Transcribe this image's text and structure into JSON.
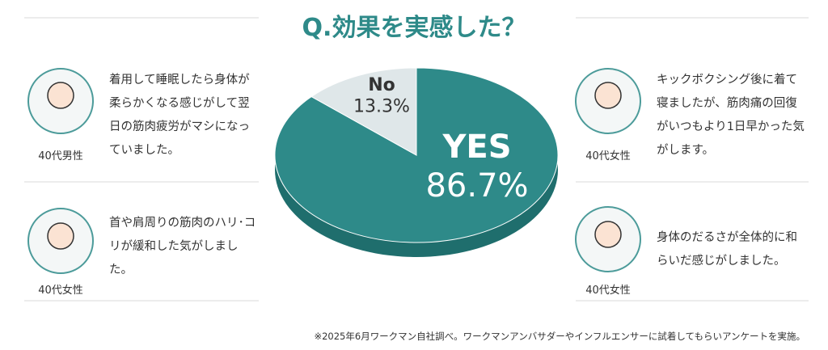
{
  "chart_data": {
    "type": "pie",
    "title": "Q.効果を実感した？",
    "categories": [
      "YES",
      "No"
    ],
    "values": [
      86.7,
      13.3
    ],
    "value_labels": [
      "86.7%",
      "13.3%"
    ],
    "colors": [
      "#2e8a89",
      "#dfe7e9"
    ]
  },
  "testimonials": [
    {
      "person": "40代男性",
      "text": "着用して睡眠したら身体が柔らかくなる感じがして翌日の筋肉疲労がマシになっていました。"
    },
    {
      "person": "40代女性",
      "text": "首や肩周りの筋肉のハリ･コリが緩和した気がしました。"
    },
    {
      "person": "40代女性",
      "text": "キックボクシング後に着て寝ましたが、筋肉痛の回復がいつもより1日早かった気がします。"
    },
    {
      "person": "40代女性",
      "text": "身体のだるさが全体的に和らいだ感じがしました。"
    }
  ],
  "footnote": "※2025年6月ワークマン自社調べ。ワークマンアンバサダーやインフルエンサーに試着してもらいアンケートを実施。"
}
